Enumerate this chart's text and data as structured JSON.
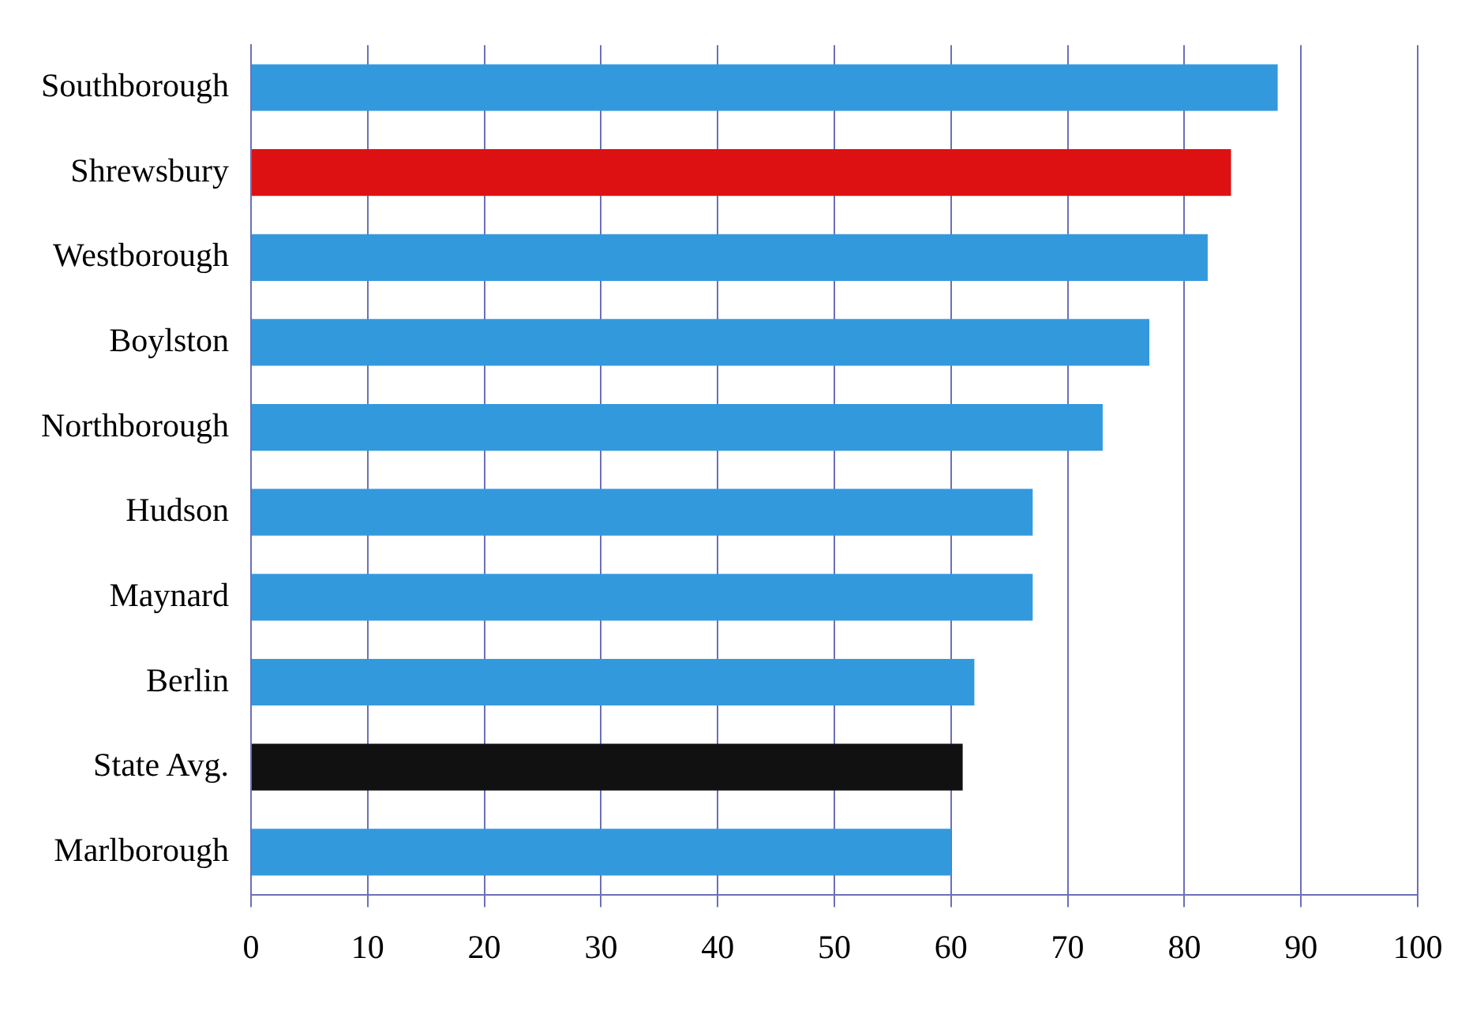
{
  "chart_data": {
    "type": "bar",
    "orientation": "horizontal",
    "categories": [
      "Southborough",
      "Shrewsbury",
      "Westborough",
      "Boylston",
      "Northborough",
      "Hudson",
      "Maynard",
      "Berlin",
      "State Avg.",
      "Marlborough"
    ],
    "values": [
      88,
      84,
      82,
      77,
      73,
      67,
      67,
      62,
      61,
      60
    ],
    "colors": [
      "#3399dd",
      "#dd1111",
      "#3399dd",
      "#3399dd",
      "#3399dd",
      "#3399dd",
      "#3399dd",
      "#3399dd",
      "#111111",
      "#3399dd"
    ],
    "xlim": [
      0,
      100
    ],
    "xticks": [
      0,
      10,
      20,
      30,
      40,
      50,
      60,
      70,
      80,
      90,
      100
    ],
    "grid": "x",
    "legend": false
  }
}
